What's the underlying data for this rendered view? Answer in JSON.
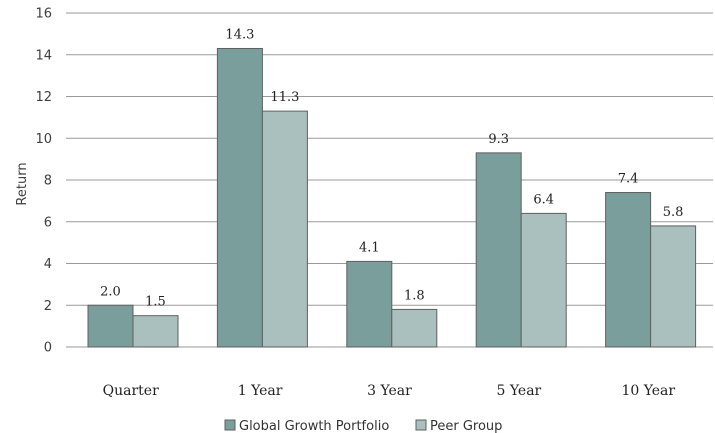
{
  "chart_data": {
    "type": "bar",
    "categories": [
      "Quarter",
      "1 Year",
      "3 Year",
      "5 Year",
      "10 Year"
    ],
    "series": [
      {
        "name": "Global Growth Portfolio",
        "values": [
          2.0,
          14.3,
          4.1,
          9.3,
          7.4
        ],
        "labels": [
          "2.0",
          "14.3",
          "4.1",
          "9.3",
          "7.4"
        ],
        "color": "#7a9e9b"
      },
      {
        "name": "Peer Group",
        "values": [
          1.5,
          11.3,
          1.8,
          6.4,
          5.8
        ],
        "labels": [
          "1.5",
          "11.3",
          "1.8",
          "6.4",
          "5.8"
        ],
        "color": "#a9c0be"
      }
    ],
    "ylabel": "Return",
    "ylim": [
      0,
      16
    ],
    "yticks": [
      0,
      2,
      4,
      6,
      8,
      10,
      12,
      14,
      16
    ],
    "grid": true,
    "legend_position": "bottom"
  }
}
